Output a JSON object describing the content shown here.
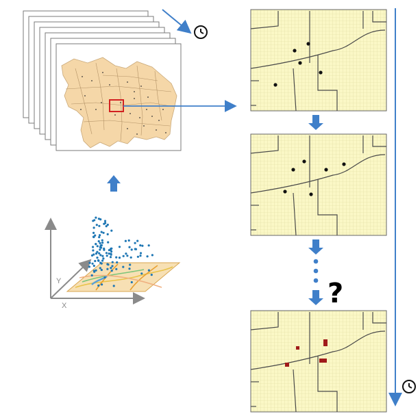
{
  "colors": {
    "accent": "#3f7fc9",
    "map_fill": "#f5d7a8",
    "grid_fill": "#fbf8c6",
    "grid_line": "#d9d79e",
    "event_dot": "#111111",
    "predicted_cell": "#a01a1a",
    "point_cloud": "#1f77b4"
  },
  "icons": {
    "clock_top": "clock-icon",
    "clock_bottom": "clock-icon",
    "question": "question-mark"
  },
  "diagram": {
    "question_label": "?",
    "axis_y_label": "Y",
    "axis_x_label": "X"
  }
}
